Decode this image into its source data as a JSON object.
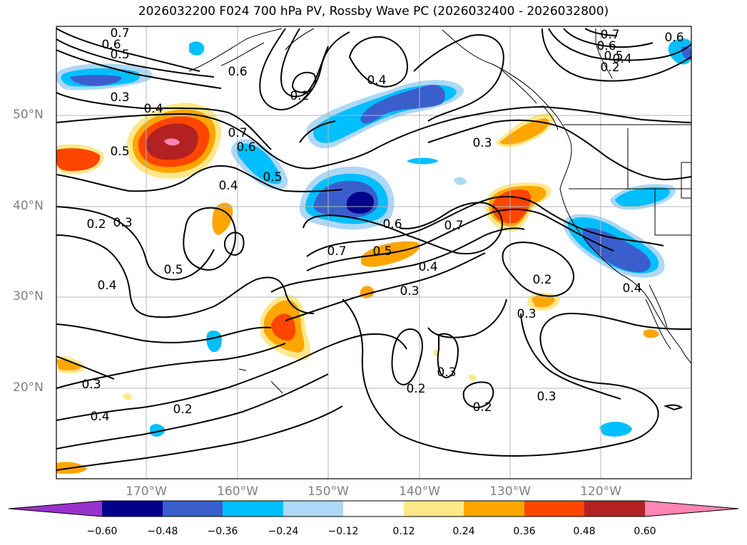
{
  "map": {
    "title": "2026032200 F024 700 hPa PV, Rossby Wave PC (2026032400 - 2026032800)",
    "lat_labels": [
      "50°N",
      "40°N",
      "30°N",
      "20°N"
    ],
    "lon_labels": [
      "170°W",
      "160°W",
      "150°W",
      "140°W",
      "130°W",
      "120°W"
    ],
    "contour_labels": [
      "0.7",
      "0.6",
      "0.5",
      "0.6",
      "0.2",
      "0.4",
      "0.3",
      "0.4",
      "0.7",
      "0.6",
      "0.5",
      "0.5",
      "0.4",
      "0.3",
      "0.7",
      "0.6",
      "0.5",
      "0.4",
      "0.2",
      "0.6",
      "0.2",
      "0.3",
      "0.4",
      "0.7",
      "0.5",
      "0.6",
      "0.7",
      "0.5",
      "0.4",
      "0.3",
      "0.2",
      "0.3",
      "0.4",
      "0.3",
      "0.2",
      "0.3",
      "0.2",
      "0.3",
      "0.2",
      "0.4"
    ],
    "colorbar": {
      "ticks": [
        "−0.60",
        "−0.48",
        "−0.36",
        "−0.24",
        "−0.12",
        "0.12",
        "0.24",
        "0.36",
        "0.48",
        "0.60"
      ],
      "colors": [
        "#9932cc",
        "#00008b",
        "#3a5fcd",
        "#00bfff",
        "#add8f6",
        "#ffffff",
        "#ffe88a",
        "#ffa500",
        "#ff4500",
        "#b22222",
        "#ff86b0"
      ]
    }
  }
}
